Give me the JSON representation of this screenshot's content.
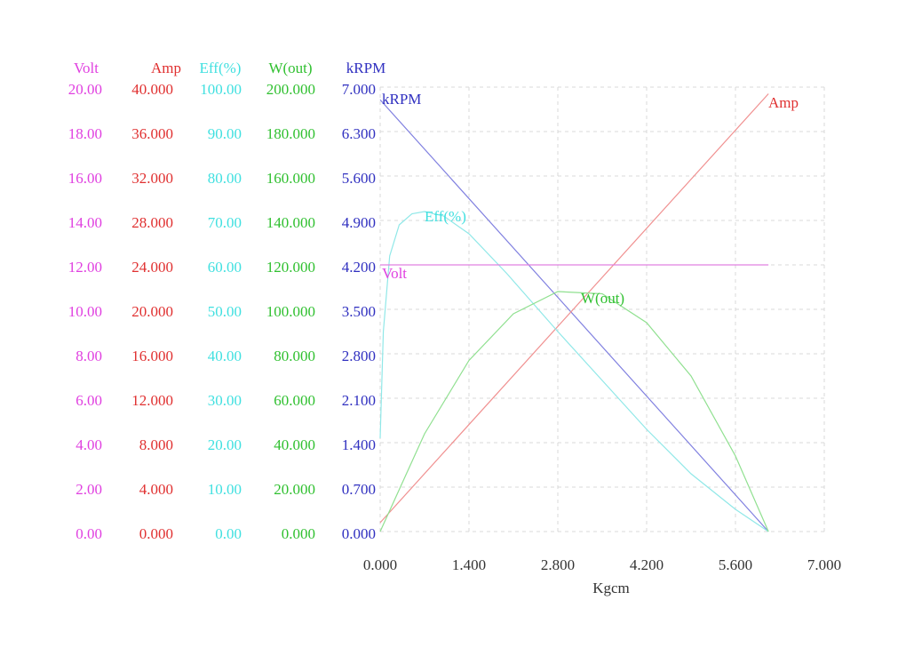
{
  "chart_data": {
    "type": "line",
    "xlabel": "Kgcm",
    "xlim": [
      0,
      7
    ],
    "xticks": [
      {
        "value": 0,
        "label": "0.000"
      },
      {
        "value": 1.4,
        "label": "1.400"
      },
      {
        "value": 2.8,
        "label": "2.800"
      },
      {
        "value": 4.2,
        "label": "4.200"
      },
      {
        "value": 5.6,
        "label": "5.600"
      },
      {
        "value": 7,
        "label": "7.000"
      }
    ],
    "grid": true,
    "axes": [
      {
        "title": "Volt",
        "color": "#e040e0",
        "ylim": [
          0,
          20
        ],
        "yticks": [
          {
            "value": 0,
            "label": "0.00"
          },
          {
            "value": 2,
            "label": "2.00"
          },
          {
            "value": 4,
            "label": "4.00"
          },
          {
            "value": 6,
            "label": "6.00"
          },
          {
            "value": 8,
            "label": "8.00"
          },
          {
            "value": 10,
            "label": "10.00"
          },
          {
            "value": 12,
            "label": "12.00"
          },
          {
            "value": 14,
            "label": "14.00"
          },
          {
            "value": 16,
            "label": "16.00"
          },
          {
            "value": 18,
            "label": "18.00"
          },
          {
            "value": 20,
            "label": "20.00"
          }
        ]
      },
      {
        "title": "Amp",
        "color": "#e03030",
        "ylim": [
          0,
          40
        ],
        "yticks": [
          {
            "value": 0,
            "label": "0.000"
          },
          {
            "value": 4,
            "label": "4.000"
          },
          {
            "value": 8,
            "label": "8.000"
          },
          {
            "value": 12,
            "label": "12.000"
          },
          {
            "value": 16,
            "label": "16.000"
          },
          {
            "value": 20,
            "label": "20.000"
          },
          {
            "value": 24,
            "label": "24.000"
          },
          {
            "value": 28,
            "label": "28.000"
          },
          {
            "value": 32,
            "label": "32.000"
          },
          {
            "value": 36,
            "label": "36.000"
          },
          {
            "value": 40,
            "label": "40.000"
          }
        ]
      },
      {
        "title": "Eff(%)",
        "color": "#40e0e0",
        "ylim": [
          0,
          100
        ],
        "yticks": [
          {
            "value": 0,
            "label": "0.00"
          },
          {
            "value": 10,
            "label": "10.00"
          },
          {
            "value": 20,
            "label": "20.00"
          },
          {
            "value": 30,
            "label": "30.00"
          },
          {
            "value": 40,
            "label": "40.00"
          },
          {
            "value": 50,
            "label": "50.00"
          },
          {
            "value": 60,
            "label": "60.00"
          },
          {
            "value": 70,
            "label": "70.00"
          },
          {
            "value": 80,
            "label": "80.00"
          },
          {
            "value": 90,
            "label": "90.00"
          },
          {
            "value": 100,
            "label": "100.00"
          }
        ]
      },
      {
        "title": "W(out)",
        "color": "#30c030",
        "ylim": [
          0,
          200
        ],
        "yticks": [
          {
            "value": 0,
            "label": "0.000"
          },
          {
            "value": 20,
            "label": "20.000"
          },
          {
            "value": 40,
            "label": "40.000"
          },
          {
            "value": 60,
            "label": "60.000"
          },
          {
            "value": 80,
            "label": "80.000"
          },
          {
            "value": 100,
            "label": "100.000"
          },
          {
            "value": 120,
            "label": "120.000"
          },
          {
            "value": 140,
            "label": "140.000"
          },
          {
            "value": 160,
            "label": "160.000"
          },
          {
            "value": 180,
            "label": "180.000"
          },
          {
            "value": 200,
            "label": "200.000"
          }
        ]
      },
      {
        "title": "kRPM",
        "color": "#3030c0",
        "ylim": [
          0,
          7
        ],
        "yticks": [
          {
            "value": 0,
            "label": "0.000"
          },
          {
            "value": 0.7,
            "label": "0.700"
          },
          {
            "value": 1.4,
            "label": "1.400"
          },
          {
            "value": 2.1,
            "label": "2.100"
          },
          {
            "value": 2.8,
            "label": "2.800"
          },
          {
            "value": 3.5,
            "label": "3.500"
          },
          {
            "value": 4.2,
            "label": "4.200"
          },
          {
            "value": 4.9,
            "label": "4.900"
          },
          {
            "value": 5.6,
            "label": "5.600"
          },
          {
            "value": 6.3,
            "label": "6.300"
          },
          {
            "value": 7,
            "label": "7.000"
          }
        ]
      }
    ],
    "series": [
      {
        "name": "kRPM",
        "axis": 4,
        "color": "#8080e0",
        "x": [
          0,
          6.12
        ],
        "values": [
          6.8,
          0
        ]
      },
      {
        "name": "Amp",
        "axis": 1,
        "color": "#f09090",
        "x": [
          0,
          6.12
        ],
        "values": [
          0.8,
          39.4
        ]
      },
      {
        "name": "Eff(%)",
        "axis": 2,
        "color": "#90e8e8",
        "x": [
          0,
          0.05,
          0.15,
          0.3,
          0.5,
          0.7,
          1.0,
          1.4,
          2.0,
          2.8,
          3.5,
          4.2,
          4.9,
          5.6,
          6.12
        ],
        "values": [
          21,
          45,
          62,
          69,
          71.5,
          72,
          71,
          67,
          58,
          45,
          34,
          23,
          13,
          5,
          0
        ]
      },
      {
        "name": "Volt",
        "axis": 0,
        "color": "#e080e0",
        "x": [
          0,
          6.12
        ],
        "values": [
          12,
          12
        ]
      },
      {
        "name": "W(out)",
        "axis": 3,
        "color": "#90e090",
        "x": [
          0,
          0.7,
          1.4,
          2.1,
          2.8,
          3.5,
          4.2,
          4.9,
          5.6,
          6.12
        ],
        "values": [
          0,
          44,
          77,
          98,
          108,
          107,
          94,
          70,
          34,
          0
        ]
      }
    ]
  }
}
